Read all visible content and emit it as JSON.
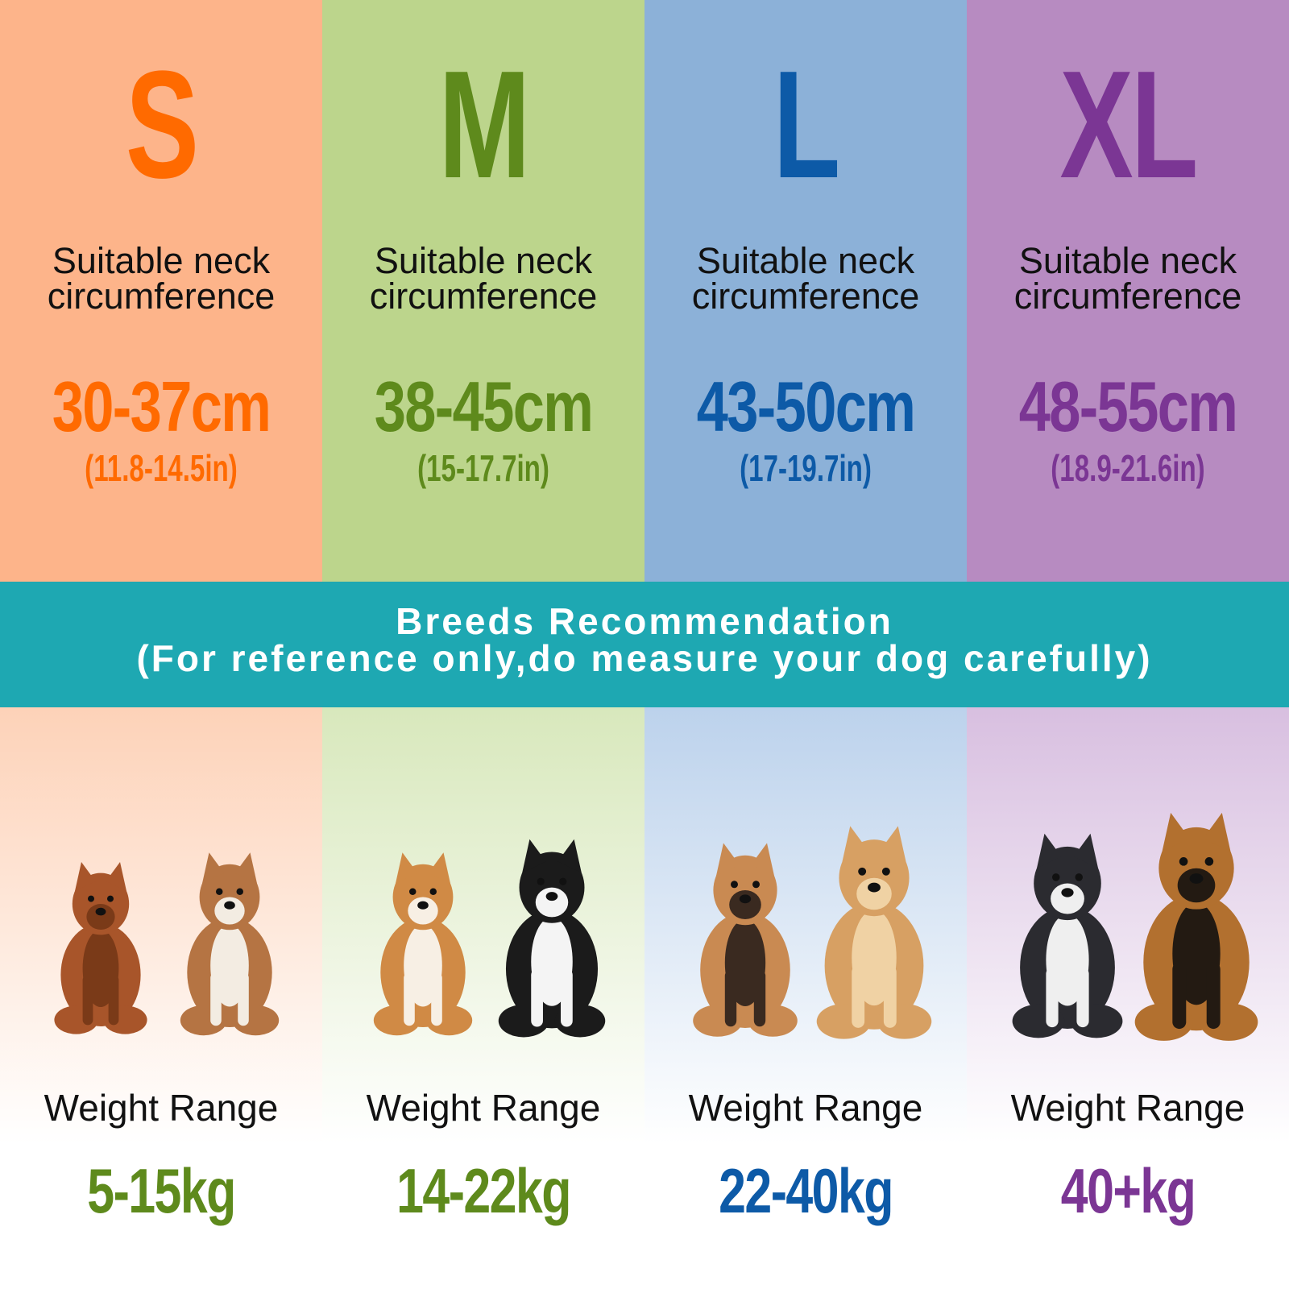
{
  "sizes": [
    {
      "label": "S",
      "neck_label": "Suitable neck circumference",
      "cm": "30-37cm",
      "inch": "(11.8-14.5in)",
      "weight_label": "Weight Range",
      "weight": "5-15kg",
      "color": "#ff6a00",
      "weight_color": "#5e8a1c",
      "bg": "#fdb48a",
      "bg_light": "#fdd2b8",
      "dogs": [
        "poodle",
        "hound"
      ]
    },
    {
      "label": "M",
      "neck_label": "Suitable neck circumference",
      "cm": "38-45cm",
      "inch": "(15-17.7in)",
      "weight_label": "Weight Range",
      "weight": "14-22kg",
      "color": "#5e8a1c",
      "weight_color": "#5e8a1c",
      "bg": "#bcd58c",
      "bg_light": "#d8e8bc",
      "dogs": [
        "shiba-inu",
        "border-collie"
      ]
    },
    {
      "label": "L",
      "neck_label": "Suitable neck circumference",
      "cm": "43-50cm",
      "inch": "(17-19.7in)",
      "weight_label": "Weight Range",
      "weight": "22-40kg",
      "color": "#0d5aa7",
      "weight_color": "#0d5aa7",
      "bg": "#8cb1d8",
      "bg_light": "#bcd2ec",
      "dogs": [
        "french-bulldog",
        "golden-retriever"
      ]
    },
    {
      "label": "XL",
      "neck_label": "Suitable neck circumference",
      "cm": "48-55cm",
      "inch": "(18.9-21.6in)",
      "weight_label": "Weight Range",
      "weight": "40+kg",
      "color": "#7b3694",
      "weight_color": "#7b3694",
      "bg": "#b78bc1",
      "bg_light": "#d8bfe0",
      "dogs": [
        "husky",
        "german-shepherd"
      ]
    }
  ],
  "banner": {
    "title": "Breeds Recommendation",
    "subtitle": "(For reference only,do measure your dog carefully)",
    "color": "#1ea8b2"
  }
}
